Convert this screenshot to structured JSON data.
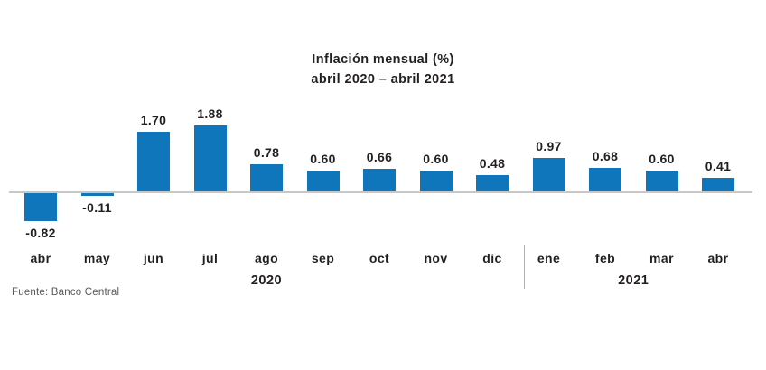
{
  "title": {
    "line1": "Inflación mensual (%)",
    "line2": "abril 2020 – abril 2021"
  },
  "source": "Fuente: Banco Central",
  "chart_data": {
    "type": "bar",
    "title": "Inflación mensual (%) abril 2020 – abril 2021",
    "categories": [
      "abr",
      "may",
      "jun",
      "jul",
      "ago",
      "sep",
      "oct",
      "nov",
      "dic",
      "ene",
      "feb",
      "mar",
      "abr"
    ],
    "values": [
      -0.82,
      -0.11,
      1.7,
      1.88,
      0.78,
      0.6,
      0.66,
      0.6,
      0.48,
      0.97,
      0.68,
      0.6,
      0.41
    ],
    "value_labels": [
      "-0.82",
      "-0.11",
      "1.70",
      "1.88",
      "0.78",
      "0.60",
      "0.66",
      "0.60",
      "0.48",
      "0.97",
      "0.68",
      "0.60",
      "0.41"
    ],
    "year_groups": [
      {
        "label": "2020",
        "from_index": 0,
        "to_index": 8
      },
      {
        "label": "2021",
        "from_index": 9,
        "to_index": 12
      }
    ],
    "separator_after_index": 8,
    "xlabel": "",
    "ylabel": "",
    "ylim": [
      -1,
      2
    ],
    "grid": false,
    "legend": false,
    "data_labels": true,
    "bar_color": "#0f76bc",
    "axis_color": "#c7c7c7",
    "separator_color": "#b0b0b0",
    "text_color": "#231f20",
    "source_color": "#58595b"
  }
}
